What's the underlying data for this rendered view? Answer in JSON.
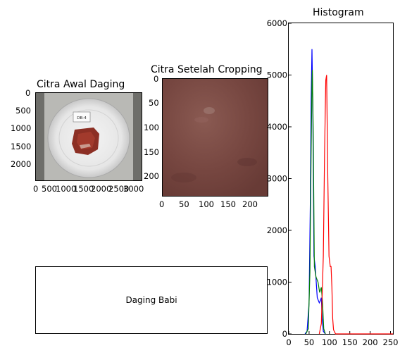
{
  "original_image": {
    "title": "Citra Awal Daging",
    "y_ticks": [
      "0",
      "500",
      "1000",
      "1500",
      "2000"
    ],
    "x_ticks": [
      "0",
      "500",
      "1000",
      "1500",
      "2000",
      "2500",
      "3000"
    ]
  },
  "cropped_image": {
    "title": "Citra Setelah Cropping",
    "y_ticks": [
      "0",
      "50",
      "100",
      "150",
      "200"
    ],
    "x_ticks": [
      "0",
      "50",
      "100",
      "150",
      "200"
    ]
  },
  "histogram": {
    "title": "Histogram",
    "y_ticks": [
      "0",
      "1000",
      "2000",
      "3000",
      "4000",
      "5000",
      "6000"
    ],
    "x_ticks": [
      "0",
      "50",
      "100",
      "150",
      "200",
      "250"
    ]
  },
  "result": {
    "label": "Daging Babi"
  },
  "chart_data": {
    "type": "line",
    "title": "Histogram",
    "xlim": [
      0,
      256
    ],
    "ylim": [
      0,
      6000
    ],
    "series": [
      {
        "color": "#0000ff",
        "x": [
          40,
          45,
          50,
          53,
          55,
          57,
          59,
          62,
          65,
          70,
          75,
          78,
          80,
          82,
          85,
          90
        ],
        "values": [
          0,
          50,
          600,
          2500,
          4500,
          5500,
          4500,
          1500,
          1300,
          700,
          600,
          650,
          700,
          300,
          50,
          0
        ]
      },
      {
        "color": "#008000",
        "x": [
          42,
          48,
          52,
          55,
          57,
          58,
          60,
          63,
          67,
          72,
          76,
          80,
          83,
          86,
          90
        ],
        "values": [
          0,
          100,
          1200,
          3500,
          4900,
          5100,
          4000,
          1300,
          1100,
          1000,
          800,
          900,
          600,
          100,
          0
        ]
      },
      {
        "color": "#ff0000",
        "x": [
          75,
          80,
          85,
          88,
          91,
          93,
          96,
          99,
          102,
          104,
          106,
          108,
          110,
          115,
          256
        ],
        "values": [
          0,
          200,
          1500,
          3500,
          4900,
          5000,
          3000,
          1500,
          1300,
          1300,
          900,
          300,
          80,
          0,
          0
        ]
      }
    ]
  }
}
